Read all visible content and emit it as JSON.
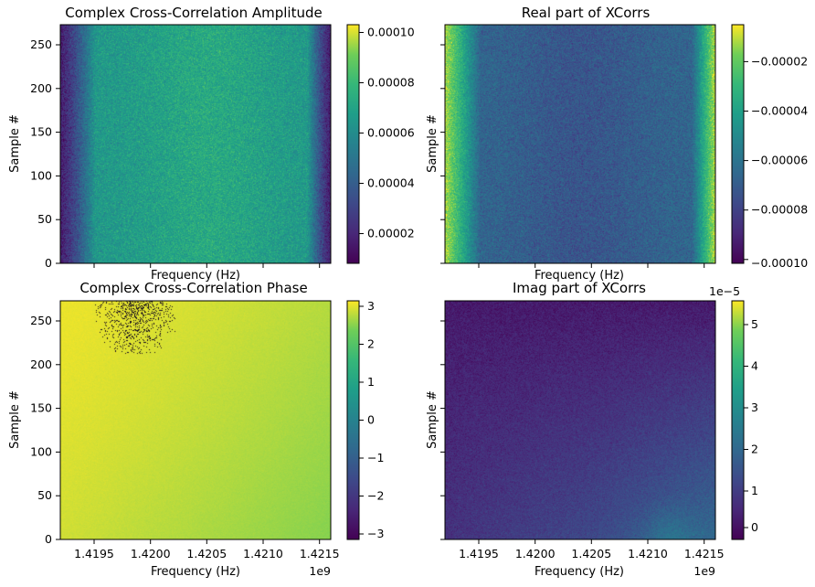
{
  "chart_data": [
    {
      "type": "heatmap",
      "title": "Complex Cross-Correlation Amplitude",
      "xlabel": "Frequency (Hz)",
      "ylabel": "Sample #",
      "xlim": [
        1419200000,
        1421600000
      ],
      "ylim": [
        0,
        273
      ],
      "x_tick_labels_visible": false,
      "y_ticks": [
        0,
        50,
        100,
        150,
        200,
        250
      ],
      "colormap": "viridis",
      "colorbar_range": [
        7.5e-06,
        0.0001025
      ],
      "colorbar_ticks": [
        "0.00002",
        "0.00004",
        "0.00006",
        "0.00008",
        "0.00010"
      ],
      "colorbar_tick_values": [
        2e-05,
        4e-05,
        6e-05,
        8e-05,
        0.0001
      ],
      "pattern": "noisy; dark at both frequency edges, brightest near center"
    },
    {
      "type": "heatmap",
      "title": "Real part of XCorrs",
      "xlabel": "Frequency (Hz)",
      "ylabel": "Sample #",
      "xlim": [
        1419200000,
        1421600000
      ],
      "ylim": [
        0,
        273
      ],
      "x_tick_labels_visible": false,
      "y_tick_labels_visible": false,
      "colormap": "viridis",
      "colorbar_range": [
        -0.000102,
        -5.5e-06
      ],
      "colorbar_ticks": [
        "−0.00002",
        "−0.00004",
        "−0.00006",
        "−0.00008",
        "−0.00010"
      ],
      "colorbar_tick_values": [
        -2e-05,
        -4e-05,
        -6e-05,
        -8e-05,
        -0.0001
      ],
      "pattern": "noisy; bright yellow at both frequency edges, darkest near center"
    },
    {
      "type": "heatmap",
      "title": "Complex Cross-Correlation Phase",
      "xlabel": "Frequency (Hz)",
      "ylabel": "Sample #",
      "xlim": [
        1419200000,
        1421600000
      ],
      "ylim": [
        0,
        273
      ],
      "x_ticks": [
        "1.4195",
        "1.4200",
        "1.4205",
        "1.4210",
        "1.4215"
      ],
      "x_tick_values": [
        1419500000,
        1420000000,
        1420500000,
        1421000000,
        1421500000
      ],
      "x_offset_label": "1e9",
      "y_ticks": [
        0,
        50,
        100,
        150,
        200,
        250
      ],
      "colormap": "viridis",
      "colorbar_range": [
        -3.1416,
        3.1416
      ],
      "colorbar_ticks": [
        "3",
        "2",
        "1",
        "0",
        "−1",
        "−2",
        "−3"
      ],
      "colorbar_tick_values": [
        3,
        2,
        1,
        0,
        -1,
        -2,
        -3
      ],
      "pattern": "almost uniformly near +pi (yellow), slightly greener at lower right; scattered wrapped (dark) pixels near top-left"
    },
    {
      "type": "heatmap",
      "title": "Imag part of XCorrs",
      "xlabel": "Frequency (Hz)",
      "ylabel": "Sample #",
      "xlim": [
        1419200000,
        1421600000
      ],
      "ylim": [
        0,
        273
      ],
      "x_ticks": [
        "1.4195",
        "1.4200",
        "1.4205",
        "1.4210",
        "1.4215"
      ],
      "x_tick_values": [
        1419500000,
        1420000000,
        1420500000,
        1421000000,
        1421500000
      ],
      "x_offset_label": "1e9",
      "y_tick_labels_visible": false,
      "colormap": "viridis",
      "colorbar_range": [
        -0.4,
        5.65
      ],
      "colorbar_scale_label": "1e−5",
      "colorbar_ticks": [
        "5",
        "4",
        "3",
        "2",
        "1",
        "0"
      ],
      "colorbar_tick_values": [
        5,
        4,
        3,
        2,
        1,
        0
      ],
      "pattern": "dark purple at top-left, increasing toward bottom-right (~3 near 1.4211e9 at sample 0)"
    }
  ]
}
